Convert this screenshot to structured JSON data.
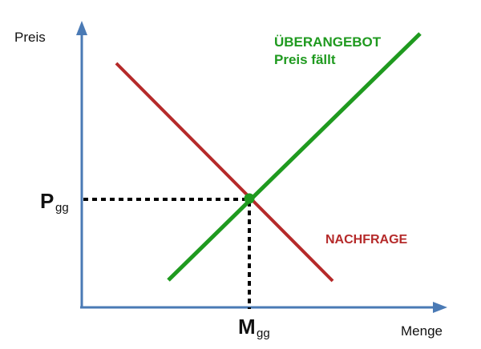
{
  "colors": {
    "axis": "#4a7ab5",
    "supply": "#1f9a1f",
    "demand": "#b52a2a",
    "guide": "#000000",
    "text": "#111111"
  },
  "axes": {
    "y_label": "Preis",
    "x_label": "Menge"
  },
  "equilibrium": {
    "price_main": "P",
    "price_sub": "gg",
    "quantity_main": "M",
    "quantity_sub": "gg"
  },
  "curves": {
    "supply_label_line1": "ÜBERANGEBOT",
    "supply_label_line2": "Preis fällt",
    "demand_label": "NACHFRAGE"
  }
}
